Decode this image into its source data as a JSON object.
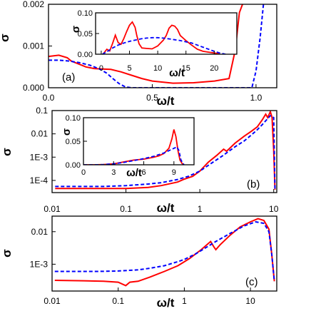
{
  "chart_data": [
    {
      "id": "a",
      "panel_label": "(a)",
      "type": "line",
      "xlabel": "ω/t",
      "ylabel": "σ",
      "xscale": "linear",
      "yscale": "linear",
      "xlim": [
        0,
        1.1
      ],
      "ylim": [
        0,
        0.002
      ],
      "xticks": [
        {
          "v": 0,
          "label": "0.0"
        },
        {
          "v": 0.5,
          "label": "0.5"
        },
        {
          "v": 1.0,
          "label": "1.0"
        }
      ],
      "yticks": [
        {
          "v": 0,
          "label": "0.000"
        },
        {
          "v": 0.001,
          "label": "0.001"
        },
        {
          "v": 0.002,
          "label": "0.002"
        }
      ],
      "series": [
        {
          "color": "#ff0000",
          "dash": false,
          "x": [
            0.0,
            0.05,
            0.09,
            0.11,
            0.14,
            0.18,
            0.22,
            0.26,
            0.3,
            0.35,
            0.4,
            0.45,
            0.5,
            0.6,
            0.7,
            0.8,
            0.87,
            0.9,
            0.92,
            0.95
          ],
          "y": [
            0.00075,
            0.00078,
            0.00072,
            0.00064,
            0.00058,
            0.0005,
            0.00046,
            0.00045,
            0.00044,
            0.00038,
            0.0003,
            0.00022,
            0.00016,
            0.00011,
            0.00012,
            0.00016,
            0.00022,
            0.0009,
            0.0018,
            0.0022
          ]
        },
        {
          "color": "#0000ff",
          "dash": true,
          "x": [
            0.0,
            0.05,
            0.1,
            0.15,
            0.2,
            0.25,
            0.28,
            0.31,
            0.34,
            0.37,
            0.4,
            0.5,
            0.7,
            0.9,
            0.98,
            1.0,
            1.02,
            1.04
          ],
          "y": [
            0.00066,
            0.00066,
            0.00064,
            0.0006,
            0.00054,
            0.00044,
            0.00035,
            0.00022,
            0.0001,
            2e-05,
            0.0,
            0.0,
            0.0,
            0.0,
            0.0,
            0.0004,
            0.0012,
            0.0022
          ]
        }
      ],
      "inset": {
        "xlabel": "ω/t",
        "ylabel": "σ",
        "xscale": "linear",
        "yscale": "linear",
        "xlim": [
          -1,
          24
        ],
        "ylim": [
          0,
          0.1
        ],
        "xticks": [
          {
            "v": 0,
            "label": "0"
          },
          {
            "v": 5,
            "label": "5"
          },
          {
            "v": 10,
            "label": "10"
          },
          {
            "v": 15,
            "label": "15"
          },
          {
            "v": 20,
            "label": "20"
          }
        ],
        "yticks": [
          {
            "v": 0,
            "label": "0.00"
          },
          {
            "v": 0.05,
            "label": "0.05"
          },
          {
            "v": 0.1,
            "label": "0.10"
          }
        ],
        "series": [
          {
            "color": "#ff0000",
            "dash": false,
            "x": [
              0.3,
              1.0,
              1.5,
              2.0,
              2.5,
              3.0,
              3.5,
              4.0,
              4.5,
              5.0,
              5.5,
              6.0,
              6.3,
              6.7,
              7.2,
              8.0,
              9.0,
              10.0,
              11.0,
              11.5,
              12.0,
              12.5,
              13.0,
              13.5,
              14.0,
              15.0,
              16.0,
              17.0,
              18.0,
              19.0,
              20.0,
              20.5,
              21.0
            ],
            "y": [
              0.0,
              0.012,
              0.008,
              0.026,
              0.046,
              0.028,
              0.024,
              0.038,
              0.055,
              0.07,
              0.078,
              0.065,
              0.045,
              0.025,
              0.015,
              0.014,
              0.013,
              0.02,
              0.034,
              0.045,
              0.063,
              0.07,
              0.068,
              0.06,
              0.045,
              0.033,
              0.022,
              0.012,
              0.007,
              0.005,
              0.003,
              0.002,
              0.0
            ]
          },
          {
            "color": "#0000ff",
            "dash": true,
            "x": [
              0.2,
              1.0,
              2.0,
              3.0,
              4.0,
              5.0,
              6.0,
              7.0,
              8.0,
              9.0,
              10.0,
              11.0,
              12.0,
              13.0,
              14.0,
              15.0,
              16.0,
              17.0,
              18.0,
              19.0,
              20.0,
              21.0,
              22.0
            ],
            "y": [
              0.0,
              0.006,
              0.015,
              0.022,
              0.027,
              0.031,
              0.034,
              0.037,
              0.039,
              0.04,
              0.04,
              0.039,
              0.037,
              0.035,
              0.033,
              0.03,
              0.027,
              0.022,
              0.017,
              0.012,
              0.007,
              0.003,
              0.0
            ]
          }
        ]
      }
    },
    {
      "id": "b",
      "panel_label": "(b)",
      "type": "line",
      "xlabel": "ω/t",
      "ylabel": "σ",
      "xscale": "log",
      "yscale": "log",
      "xlim": [
        0.01,
        11
      ],
      "ylim": [
        3e-05,
        0.1
      ],
      "xticks": [
        {
          "v": 0.01,
          "label": "0.01"
        },
        {
          "v": 0.1,
          "label": "0.1"
        },
        {
          "v": 1,
          "label": "1"
        },
        {
          "v": 10,
          "label": "10"
        }
      ],
      "yticks": [
        {
          "v": 0.0001,
          "label": "1E-4"
        },
        {
          "v": 0.001,
          "label": "1E-3"
        },
        {
          "v": 0.01,
          "label": "0.01"
        },
        {
          "v": 0.1,
          "label": "0.1"
        }
      ],
      "series": [
        {
          "color": "#ff0000",
          "dash": false,
          "x": [
            0.011,
            0.05,
            0.1,
            0.2,
            0.3,
            0.5,
            0.6,
            0.7,
            0.8,
            1.0,
            1.3,
            1.7,
            2.1,
            2.3,
            2.5,
            3.0,
            4.0,
            5.0,
            6.0,
            7.0,
            7.8,
            8.3,
            9.0,
            9.5,
            10.0,
            10.4
          ],
          "y": [
            4.5e-05,
            4.5e-05,
            4.5e-05,
            5e-05,
            6e-05,
            8.5e-05,
            0.00011,
            0.00013,
            0.00015,
            0.00025,
            0.0006,
            0.0012,
            0.0022,
            0.0018,
            0.0023,
            0.004,
            0.008,
            0.013,
            0.02,
            0.04,
            0.07,
            0.05,
            0.09,
            0.05,
            0.002,
            4e-05
          ]
        },
        {
          "color": "#0000ff",
          "dash": true,
          "x": [
            0.011,
            0.05,
            0.1,
            0.2,
            0.3,
            0.5,
            0.7,
            1.0,
            1.5,
            2.0,
            3.0,
            4.0,
            5.0,
            6.0,
            7.0,
            8.0,
            9.0,
            10.0,
            10.4
          ],
          "y": [
            5.5e-05,
            5.5e-05,
            6e-05,
            7e-05,
            8e-05,
            0.00011,
            0.00015,
            0.00025,
            0.0006,
            0.0011,
            0.0028,
            0.005,
            0.009,
            0.015,
            0.025,
            0.04,
            0.06,
            0.05,
            4e-05
          ]
        }
      ],
      "inset": {
        "xlabel": "ω/t",
        "ylabel": "σ",
        "xscale": "linear",
        "yscale": "linear",
        "xlim": [
          0,
          11
        ],
        "ylim": [
          0,
          0.1
        ],
        "xticks": [
          {
            "v": 0,
            "label": "0"
          },
          {
            "v": 3,
            "label": "3"
          },
          {
            "v": 6,
            "label": "6"
          },
          {
            "v": 9,
            "label": "9"
          }
        ],
        "yticks": [
          {
            "v": 0,
            "label": "0.00"
          },
          {
            "v": 0.05,
            "label": "0.05"
          },
          {
            "v": 0.1,
            "label": "0.10"
          }
        ],
        "series": [
          {
            "color": "#ff0000",
            "dash": false,
            "x": [
              0.0,
              1.0,
              2.0,
              3.0,
              3.5,
              4.0,
              5.0,
              6.0,
              6.5,
              7.0,
              7.5,
              8.0,
              8.5,
              8.8,
              9.0,
              9.2,
              9.4,
              9.6,
              9.8,
              10.0
            ],
            "y": [
              0.0,
              0.0,
              0.0005,
              0.002,
              0.004,
              0.006,
              0.01,
              0.012,
              0.014,
              0.016,
              0.019,
              0.024,
              0.035,
              0.055,
              0.075,
              0.06,
              0.03,
              0.01,
              0.003,
              0.0
            ]
          },
          {
            "color": "#0000ff",
            "dash": true,
            "x": [
              0.0,
              1.0,
              2.0,
              3.0,
              4.0,
              5.0,
              6.0,
              7.0,
              8.0,
              9.0,
              9.3,
              9.5,
              9.7,
              10.0
            ],
            "y": [
              0.0,
              0.0,
              0.0005,
              0.002,
              0.005,
              0.009,
              0.013,
              0.018,
              0.025,
              0.035,
              0.038,
              0.03,
              0.01,
              0.0
            ]
          }
        ]
      }
    },
    {
      "id": "c",
      "panel_label": "(c)",
      "type": "line",
      "xlabel": "ω/t",
      "ylabel": "σ",
      "xscale": "log",
      "yscale": "log",
      "xlim": [
        0.01,
        25
      ],
      "ylim": [
        0.00015,
        0.03
      ],
      "xticks": [
        {
          "v": 0.01,
          "label": "0.01"
        },
        {
          "v": 0.1,
          "label": "0.1"
        },
        {
          "v": 1,
          "label": "1"
        },
        {
          "v": 10,
          "label": "10"
        }
      ],
      "yticks": [
        {
          "v": 0.001,
          "label": "1E-3"
        },
        {
          "v": 0.01,
          "label": "0.01"
        }
      ],
      "series": [
        {
          "color": "#ff0000",
          "dash": false,
          "x": [
            0.011,
            0.03,
            0.06,
            0.1,
            0.13,
            0.15,
            0.2,
            0.3,
            0.5,
            0.8,
            1.2,
            1.8,
            2.5,
            2.8,
            3.0,
            3.5,
            5.0,
            7.0,
            10.0,
            13.0,
            16.0,
            19.0,
            21.0,
            23.0
          ],
          "y": [
            0.00032,
            0.00031,
            0.0003,
            0.00028,
            0.00022,
            0.00028,
            0.0003,
            0.0004,
            0.0006,
            0.0009,
            0.0015,
            0.0028,
            0.005,
            0.0034,
            0.0028,
            0.004,
            0.008,
            0.014,
            0.02,
            0.025,
            0.022,
            0.012,
            0.002,
            0.0003
          ]
        },
        {
          "color": "#0000ff",
          "dash": true,
          "x": [
            0.011,
            0.05,
            0.1,
            0.2,
            0.3,
            0.5,
            0.8,
            1.0,
            1.5,
            2.0,
            3.0,
            5.0,
            8.0,
            12.0,
            16.0,
            19.0,
            21.0,
            23.0
          ],
          "y": [
            0.0006,
            0.0006,
            0.00062,
            0.00067,
            0.00075,
            0.0009,
            0.0012,
            0.0014,
            0.0021,
            0.003,
            0.005,
            0.009,
            0.015,
            0.02,
            0.018,
            0.01,
            0.002,
            0.0003
          ]
        }
      ]
    }
  ]
}
